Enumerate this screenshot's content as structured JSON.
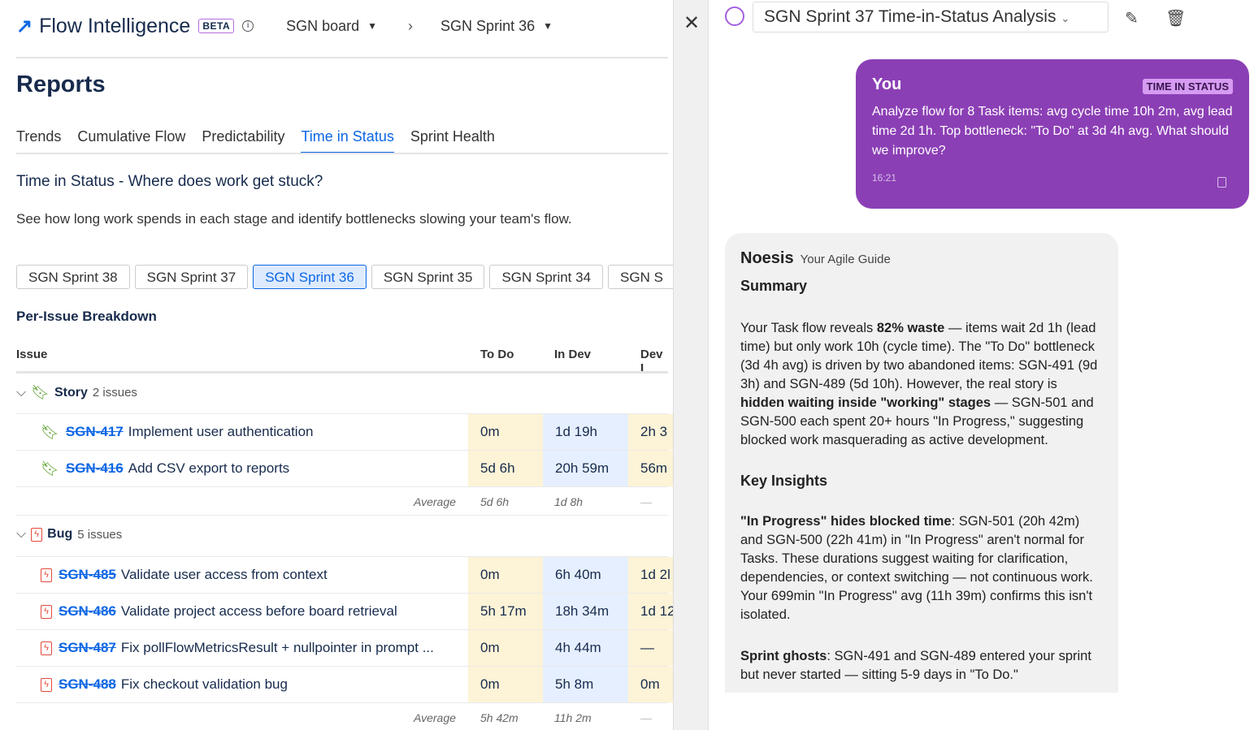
{
  "header": {
    "app_title": "Flow Intelligence",
    "beta": "BETA",
    "board": "SGN board",
    "sprint": "SGN Sprint 36"
  },
  "page": {
    "title": "Reports",
    "tabs": [
      "Trends",
      "Cumulative Flow",
      "Predictability",
      "Time in Status",
      "Sprint Health"
    ],
    "active_tab": "Time in Status",
    "heading": "Time in Status - Where does work get stuck?",
    "description": "See how long work spends in each stage and identify bottlenecks slowing your team's flow.",
    "sprints": [
      "SGN Sprint 38",
      "SGN Sprint 37",
      "SGN Sprint 36",
      "SGN Sprint 35",
      "SGN Sprint 34",
      "SGN S"
    ],
    "active_sprint": "SGN Sprint 36"
  },
  "table": {
    "title": "Per-Issue Breakdown",
    "columns": [
      "Issue",
      "To Do",
      "In Dev",
      "Dev I"
    ],
    "groups": [
      {
        "name": "Story",
        "count": "2 issues",
        "rows": [
          {
            "key": "SGN-417",
            "title": "Implement user authentication",
            "todo": "0m",
            "indev": "1d 19h",
            "dev": "2h 3"
          },
          {
            "key": "SGN-416",
            "title": "Add CSV export to reports",
            "todo": "5d 6h",
            "indev": "20h 59m",
            "dev": "56m"
          }
        ],
        "avg_label": "Average",
        "avg": {
          "todo": "5d 6h",
          "indev": "1d 8h",
          "dev": "—"
        }
      },
      {
        "name": "Bug",
        "count": "5 issues",
        "rows": [
          {
            "key": "SGN-485",
            "title": "Validate user access from context",
            "todo": "0m",
            "indev": "6h 40m",
            "dev": "1d 2l"
          },
          {
            "key": "SGN-486",
            "title": "Validate project access before board retrieval",
            "todo": "5h 17m",
            "indev": "18h 34m",
            "dev": "1d 12"
          },
          {
            "key": "SGN-487",
            "title": "Fix pollFlowMetricsResult + nullpointer in prompt ...",
            "todo": "0m",
            "indev": "4h 44m",
            "dev": "—"
          },
          {
            "key": "SGN-488",
            "title": "Fix checkout validation bug",
            "todo": "0m",
            "indev": "5h 8m",
            "dev": "0m"
          }
        ],
        "avg_label": "Average",
        "avg": {
          "todo": "5h 42m",
          "indev": "11h 2m",
          "dev": "—"
        }
      }
    ]
  },
  "chat": {
    "conversation": "SGN Sprint 37 Time-in-Status Analysis",
    "user": {
      "name": "You",
      "tag": "TIME IN STATUS",
      "message": "Analyze flow for 8 Task items: avg cycle time 10h 2m, avg lead time 2d 1h. Top bottleneck: \"To Do\" at 3d 4h avg. What should we improve?",
      "time": "16:21"
    },
    "assistant": {
      "name": "Noesis",
      "subtitle": "Your Agile Guide",
      "summary_title": "Summary",
      "summary": [
        "Your Task flow reveals ",
        "82% waste",
        " — items wait 2d 1h (lead time) but only work 10h (cycle time). The \"To Do\" bottleneck (3d 4h avg) is driven by two abandoned items: SGN-491 (9d 3h) and SGN-489 (5d 10h). However, the real story is ",
        "hidden waiting inside \"working\" stages",
        " — SGN-501 and SGN-500 each spent 20+ hours \"In Progress,\" suggesting blocked work masquerading as active development."
      ],
      "insights_title": "Key Insights",
      "insight1": [
        "\"In Progress\" hides blocked time",
        ": SGN-501 (20h 42m) and SGN-500 (22h 41m) in \"In Progress\" aren't normal for Tasks. These durations suggest waiting for clarification, dependencies, or context switching — not continuous work. Your 699min \"In Progress\" avg (11h 39m) confirms this isn't isolated."
      ],
      "insight2": [
        "Sprint ghosts",
        ": SGN-491 and SGN-489 entered your sprint but never started — sitting 5-9 days in \"To Do.\""
      ]
    }
  },
  "colors": {
    "accent": "#0c66e4",
    "user_bubble": "#8b3fb5",
    "todo_cell": "#fdf3d6",
    "indev_cell": "#e6efff",
    "story": "#5aa02c",
    "bug": "#e5493a"
  }
}
